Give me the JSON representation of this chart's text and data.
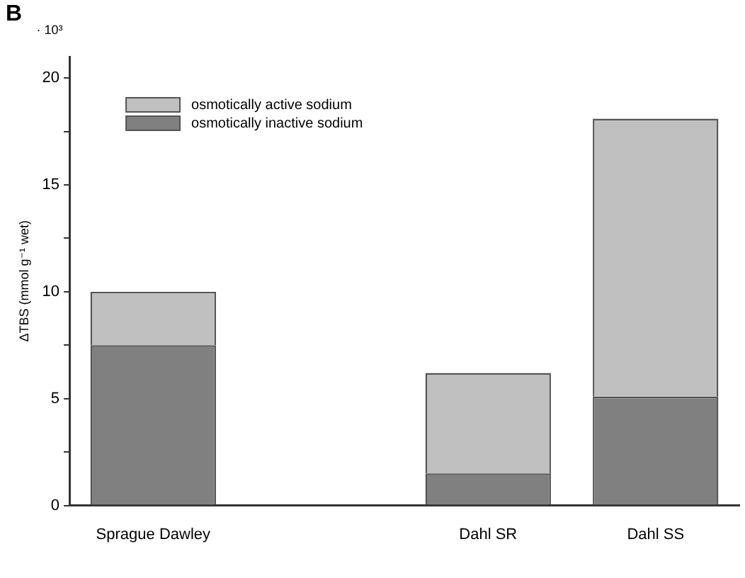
{
  "chart_data": {
    "type": "bar",
    "stacked": true,
    "categories": [
      "Sprague Dawley",
      null,
      "Dahl SR",
      "Dahl SS"
    ],
    "series": [
      {
        "name": "osmotically inactive sodium",
        "color": "#808080",
        "values": [
          7.5,
          null,
          1.5,
          5.1
        ]
      },
      {
        "name": "osmotically active sodium",
        "color": "#c0c0c0",
        "values": [
          2.5,
          null,
          4.7,
          13.0
        ]
      }
    ],
    "ylabel": "ΔTBS (mmol g⁻¹ wet)",
    "ylim": [
      0,
      21
    ],
    "yticks": [
      0,
      {
        "value": 2.5,
        "label": null
      },
      5,
      {
        "value": 7.5,
        "label": null
      },
      10,
      {
        "value": 12.5,
        "label": null
      },
      15,
      {
        "value": 17.5,
        "label": null
      },
      20
    ],
    "annotations": [
      "B",
      "· 10³"
    ],
    "legend": "top left",
    "grid": false
  }
}
